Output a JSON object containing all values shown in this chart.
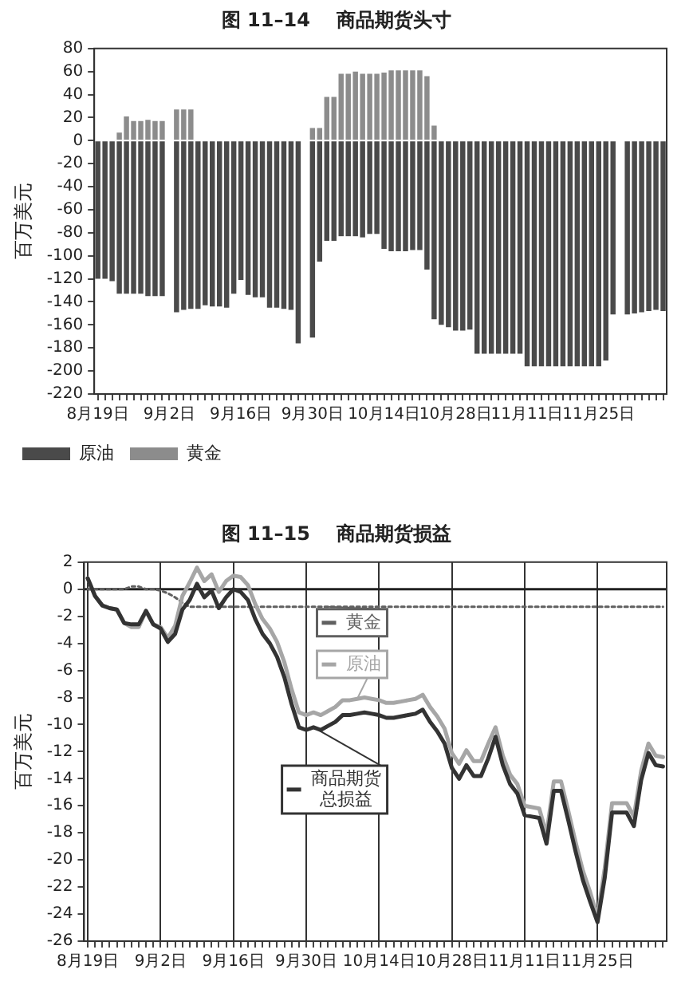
{
  "chart_data": [
    {
      "type": "bar",
      "title": "图 11–14    商品期货头寸",
      "ylabel": "百万美元",
      "stacked": true,
      "legend": "bottom",
      "categories": [
        "8月19日",
        null,
        null,
        null,
        null,
        null,
        null,
        null,
        null,
        null,
        "9月2日",
        null,
        null,
        null,
        null,
        null,
        null,
        null,
        null,
        null,
        "9月16日",
        null,
        null,
        null,
        null,
        null,
        null,
        null,
        null,
        null,
        "9月30日",
        null,
        null,
        null,
        null,
        null,
        null,
        null,
        null,
        null,
        "10月14日",
        null,
        null,
        null,
        null,
        null,
        null,
        null,
        null,
        null,
        "10月28日",
        null,
        null,
        null,
        null,
        null,
        null,
        null,
        null,
        null,
        "11月11日",
        null,
        null,
        null,
        null,
        null,
        null,
        null,
        null,
        null,
        "11月25日",
        null,
        null,
        null,
        null,
        null,
        null,
        null,
        null,
        null
      ],
      "ylim": [
        -220,
        80
      ],
      "yticks": [
        -220,
        -200,
        -180,
        -160,
        -140,
        -120,
        -100,
        -80,
        -60,
        -40,
        -20,
        0,
        20,
        40,
        60,
        80
      ],
      "series": [
        {
          "name": "原油",
          "color": "#4a4a4a",
          "values": [
            -120,
            -120,
            -122,
            -133,
            -133,
            -133,
            -133,
            -135,
            -135,
            -135,
            null,
            -149,
            -147,
            -146,
            -146,
            -143,
            -144,
            -144,
            -145,
            -133,
            -121,
            -134,
            -136,
            -136,
            -145,
            -145,
            -146,
            -147,
            -176,
            null,
            -171,
            -105,
            -87,
            -87,
            -83,
            -83,
            -83,
            -84,
            -81,
            -81,
            -94,
            -96,
            -96,
            -96,
            -95,
            -95,
            -112,
            -155,
            -160,
            -162,
            -165,
            -165,
            -164,
            -185,
            -185,
            -185,
            -185,
            -185,
            -185,
            -185,
            -196,
            -196,
            -196,
            -196,
            -196,
            -196,
            -196,
            -196,
            -196,
            -196,
            -196,
            -191,
            -151,
            null,
            -151,
            -150,
            -149,
            -148,
            -147,
            -148
          ]
        },
        {
          "name": "黄金",
          "color": "#8c8c8c",
          "values": [
            null,
            null,
            null,
            7,
            21,
            17,
            17,
            18,
            17,
            17,
            null,
            27,
            27,
            27,
            null,
            null,
            null,
            null,
            null,
            null,
            null,
            null,
            null,
            null,
            null,
            null,
            null,
            null,
            null,
            null,
            11,
            11,
            38,
            38,
            58,
            58,
            60,
            58,
            58,
            58,
            59,
            61,
            61,
            61,
            61,
            61,
            56,
            13,
            null,
            null,
            null,
            null,
            null,
            null,
            null,
            null,
            null,
            null,
            null,
            null,
            null,
            null,
            null,
            null,
            null,
            null,
            null,
            null,
            null,
            null,
            null,
            null,
            null,
            null,
            null,
            null,
            null,
            null,
            null,
            null
          ]
        }
      ]
    },
    {
      "type": "line",
      "title": "图 11–15    商品期货损益",
      "ylabel": "百万美元",
      "legend": "center",
      "grid": "x",
      "marker": "none",
      "categories": [
        "8月19日",
        null,
        null,
        null,
        null,
        null,
        null,
        null,
        null,
        null,
        "9月2日",
        null,
        null,
        null,
        null,
        null,
        null,
        null,
        null,
        null,
        "9月16日",
        null,
        null,
        null,
        null,
        null,
        null,
        null,
        null,
        null,
        "9月30日",
        null,
        null,
        null,
        null,
        null,
        null,
        null,
        null,
        null,
        "10月14日",
        null,
        null,
        null,
        null,
        null,
        null,
        null,
        null,
        null,
        "10月28日",
        null,
        null,
        null,
        null,
        null,
        null,
        null,
        null,
        null,
        "11月11日",
        null,
        null,
        null,
        null,
        null,
        null,
        null,
        null,
        null,
        "11月25日",
        null,
        null,
        null,
        null,
        null,
        null,
        null,
        null,
        null
      ],
      "ylim": [
        -26,
        2
      ],
      "yticks": [
        -26,
        -24,
        -22,
        -20,
        -18,
        -16,
        -14,
        -12,
        -10,
        -8,
        -6,
        -4,
        -2,
        0,
        2
      ],
      "ref_lines": [
        {
          "axis": "y",
          "value": 0,
          "color": "#222222"
        }
      ],
      "series": [
        {
          "name": "黄金",
          "color": "#606060",
          "line_style": "dotted",
          "values": [
            0,
            0,
            0,
            0,
            0,
            0,
            0.2,
            0.2,
            0,
            0,
            -0.1,
            -0.3,
            -0.6,
            -1,
            -1.3,
            -1.3,
            -1.3,
            -1.3,
            -1.3,
            -1.3,
            -1.3,
            -1.3,
            -1.3,
            -1.3,
            -1.3,
            -1.3,
            -1.3,
            -1.3,
            -1.3,
            -1.3,
            -1.3,
            -1.3,
            -1.3,
            -1.3,
            -1.3,
            -1.3,
            -1.3,
            -1.3,
            -1.3,
            -1.3,
            -1.3,
            -1.3,
            -1.3,
            -1.3,
            -1.3,
            -1.3,
            -1.3,
            -1.3,
            -1.3,
            -1.3,
            -1.3,
            -1.3,
            -1.3,
            -1.3,
            -1.3,
            -1.3,
            -1.3,
            -1.3,
            -1.3,
            -1.3,
            -1.3,
            -1.3,
            -1.3,
            -1.3,
            -1.3,
            -1.3,
            -1.3,
            -1.3,
            -1.3,
            -1.3,
            -1.3,
            -1.3,
            -1.3,
            -1.3,
            -1.3,
            -1.3,
            -1.3,
            -1.3,
            -1.3,
            -1.3
          ]
        },
        {
          "name": "原油",
          "color": "#a6a6a6",
          "line_style": "solid",
          "values": [
            0.8,
            -0.5,
            -1.2,
            -1.4,
            -1.5,
            -2.5,
            -2.8,
            -2.8,
            -1.6,
            -2.6,
            -2.8,
            -3.6,
            -2.7,
            -0.5,
            0.5,
            1.6,
            0.6,
            1.1,
            -0.2,
            0.6,
            1,
            0.9,
            0.3,
            -1.1,
            -2.2,
            -2.9,
            -3.9,
            -5.4,
            -7.4,
            -9.1,
            -9.3,
            -9.1,
            -9.3,
            -9,
            -8.7,
            -8.2,
            -8.2,
            -8.1,
            -8,
            -8.1,
            -8.2,
            -8.4,
            -8.4,
            -8.3,
            -8.2,
            -8.1,
            -7.8,
            -8.7,
            -9.4,
            -10.3,
            -12.1,
            -12.9,
            -11.9,
            -12.7,
            -12.7,
            -11.4,
            -10.2,
            -12.3,
            -13.7,
            -14.4,
            -16,
            -16.1,
            -16.2,
            -18.1,
            -14.2,
            -14.2,
            -16.4,
            -18.7,
            -20.8,
            -22.4,
            -24.2,
            -20.6,
            -15.8,
            -15.8,
            -15.8,
            -16.8,
            -13.4,
            -11.4,
            -12.3,
            -12.4
          ]
        },
        {
          "name": "商品期货总损益",
          "color": "#333333",
          "line_style": "solid",
          "values": [
            0.8,
            -0.5,
            -1.2,
            -1.4,
            -1.5,
            -2.5,
            -2.6,
            -2.6,
            -1.6,
            -2.6,
            -2.9,
            -3.9,
            -3.3,
            -1.5,
            -0.8,
            0.4,
            -0.6,
            -0.1,
            -1.4,
            -0.6,
            0,
            -0.2,
            -0.8,
            -2.2,
            -3.3,
            -4,
            -5,
            -6.5,
            -8.5,
            -10.2,
            -10.4,
            -10.2,
            -10.4,
            -10.1,
            -9.8,
            -9.3,
            -9.3,
            -9.2,
            -9.1,
            -9.2,
            -9.3,
            -9.5,
            -9.5,
            -9.4,
            -9.3,
            -9.2,
            -8.9,
            -9.8,
            -10.5,
            -11.4,
            -13.2,
            -14,
            -13,
            -13.8,
            -13.8,
            -12.5,
            -10.9,
            -13,
            -14.4,
            -15.1,
            -16.7,
            -16.8,
            -16.9,
            -18.8,
            -14.9,
            -14.9,
            -17.1,
            -19.4,
            -21.5,
            -23.1,
            -24.6,
            -21.3,
            -16.5,
            -16.5,
            -16.5,
            -17.5,
            -14.1,
            -12.1,
            -13,
            -13.1
          ]
        }
      ]
    }
  ]
}
